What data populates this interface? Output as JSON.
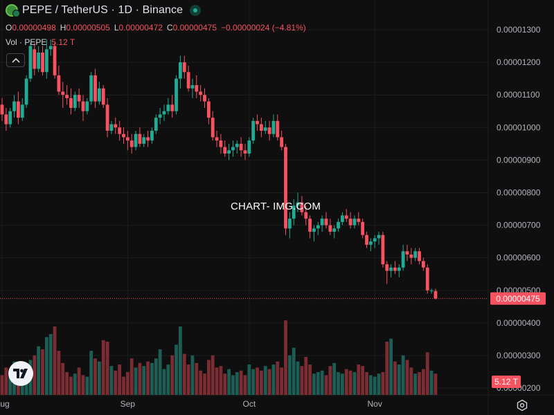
{
  "header": {
    "title": "PEPE / TetherUS · 1D · Binance",
    "symbol_icon": "pepe-coin-icon",
    "status_icon": "market-open-dot-icon"
  },
  "ohlc": {
    "o_label": "O",
    "o_value": "0.00000498",
    "h_label": "H",
    "h_value": "0.00000505",
    "l_label": "L",
    "l_value": "0.00000472",
    "c_label": "C",
    "c_value": "0.00000475",
    "change": "−0.00000024 (−4.81%)"
  },
  "volume": {
    "label": "Vol · PEPE",
    "value": "5.12 T"
  },
  "watermark": "CHART- IMG.COM",
  "colors": {
    "background": "#0f0f0f",
    "up": "#22ab94",
    "down": "#f7525f",
    "vol_up": "#1c5e55",
    "vol_down": "#7c2d33",
    "grid": "#1e1e1e",
    "axis_text": "#b2b5be"
  },
  "chart_data": {
    "type": "candlestick",
    "price_axis": {
      "ticks": [
        "0.00001300",
        "0.00001200",
        "0.00001100",
        "0.00001000",
        "0.00000900",
        "0.00000800",
        "0.00000700",
        "0.00000600",
        "0.00000500",
        "0.00000400",
        "0.00000300",
        "0.00000200"
      ],
      "tick_values": [
        1.3e-05,
        1.2e-05,
        1.1e-05,
        1e-05,
        9e-06,
        8e-06,
        7e-06,
        6e-06,
        5e-06,
        4e-06,
        3e-06,
        2e-06
      ]
    },
    "last_price_label": "0.00000475",
    "volume_label": "5.12 T",
    "x_ticks": [
      {
        "label": "Aug",
        "index": 0
      },
      {
        "label": "Sep",
        "index": 31
      },
      {
        "label": "Oct",
        "index": 61
      },
      {
        "label": "Nov",
        "index": 92
      }
    ],
    "candles": [
      [
        10.7,
        10.9,
        10.2,
        10.4,
        1.3
      ],
      [
        10.4,
        10.6,
        9.9,
        10.1,
        1.8
      ],
      [
        10.1,
        10.6,
        10.0,
        10.5,
        1.6
      ],
      [
        10.5,
        11.0,
        10.3,
        10.8,
        2.2
      ],
      [
        10.8,
        11.1,
        10.1,
        10.3,
        1.9
      ],
      [
        10.3,
        10.9,
        10.2,
        10.7,
        2.1
      ],
      [
        10.7,
        11.6,
        10.6,
        11.5,
        2.0
      ],
      [
        11.5,
        12.6,
        11.4,
        12.5,
        2.3
      ],
      [
        12.4,
        12.6,
        11.6,
        11.8,
        2.6
      ],
      [
        11.8,
        12.5,
        11.7,
        12.3,
        3.2
      ],
      [
        12.3,
        12.5,
        11.6,
        11.7,
        3.0
      ],
      [
        11.7,
        12.7,
        11.5,
        12.4,
        3.8
      ],
      [
        12.4,
        12.7,
        12.2,
        12.5,
        4.0
      ],
      [
        12.5,
        12.6,
        11.5,
        11.6,
        4.5
      ],
      [
        11.6,
        11.9,
        11.0,
        11.1,
        2.9
      ],
      [
        11.1,
        11.4,
        10.6,
        11.0,
        2.1
      ],
      [
        11.0,
        11.3,
        10.7,
        10.9,
        1.5
      ],
      [
        10.9,
        11.2,
        10.4,
        10.6,
        1.2
      ],
      [
        10.6,
        11.1,
        10.5,
        11.0,
        1.4
      ],
      [
        11.0,
        11.2,
        10.6,
        10.8,
        1.8
      ],
      [
        10.8,
        11.0,
        10.2,
        10.5,
        1.3
      ],
      [
        10.5,
        10.9,
        10.4,
        10.8,
        1.2
      ],
      [
        10.8,
        11.7,
        10.7,
        11.6,
        2.9
      ],
      [
        11.6,
        11.8,
        10.6,
        10.8,
        2.4
      ],
      [
        10.8,
        11.4,
        10.7,
        11.2,
        2.2
      ],
      [
        11.2,
        11.3,
        10.6,
        10.7,
        3.6
      ],
      [
        10.7,
        10.9,
        9.7,
        9.9,
        3.5
      ],
      [
        9.9,
        10.2,
        9.8,
        10.1,
        1.9
      ],
      [
        10.1,
        10.3,
        9.8,
        10.0,
        1.6
      ],
      [
        10.0,
        10.2,
        9.6,
        9.8,
        2.0
      ],
      [
        9.8,
        10.0,
        9.5,
        9.7,
        1.2
      ],
      [
        9.7,
        9.9,
        9.3,
        9.6,
        1.5
      ],
      [
        9.6,
        9.8,
        9.2,
        9.4,
        2.4
      ],
      [
        9.4,
        9.9,
        9.3,
        9.8,
        1.8
      ],
      [
        9.8,
        10.0,
        9.4,
        9.5,
        2.1
      ],
      [
        9.5,
        9.8,
        9.4,
        9.7,
        1.9
      ],
      [
        9.7,
        9.9,
        9.4,
        9.6,
        2.2
      ],
      [
        9.6,
        10.0,
        9.5,
        9.9,
        2.1
      ],
      [
        9.9,
        10.4,
        9.8,
        10.3,
        2.4
      ],
      [
        10.3,
        10.6,
        10.1,
        10.4,
        3.0
      ],
      [
        10.4,
        10.7,
        10.2,
        10.5,
        1.7
      ],
      [
        10.5,
        10.9,
        10.4,
        10.7,
        2.0
      ],
      [
        10.7,
        11.0,
        10.3,
        10.5,
        2.6
      ],
      [
        10.5,
        11.6,
        10.4,
        11.5,
        3.3
      ],
      [
        11.5,
        12.2,
        11.2,
        12.0,
        4.5
      ],
      [
        12.0,
        12.2,
        11.5,
        11.7,
        2.7
      ],
      [
        11.7,
        11.9,
        11.1,
        11.2,
        2.0
      ],
      [
        11.2,
        11.5,
        10.9,
        11.3,
        2.6
      ],
      [
        11.3,
        11.6,
        10.9,
        11.1,
        2.1
      ],
      [
        11.1,
        11.3,
        10.8,
        11.0,
        1.6
      ],
      [
        11.0,
        11.2,
        10.6,
        10.8,
        1.4
      ],
      [
        10.8,
        10.9,
        10.1,
        10.3,
        2.3
      ],
      [
        10.3,
        10.5,
        9.6,
        9.7,
        2.6
      ],
      [
        9.7,
        9.9,
        9.4,
        9.6,
        1.8
      ],
      [
        9.6,
        9.8,
        9.2,
        9.4,
        1.9
      ],
      [
        9.4,
        9.6,
        9.1,
        9.2,
        1.4
      ],
      [
        9.2,
        9.5,
        9.0,
        9.3,
        1.7
      ],
      [
        9.3,
        9.6,
        9.1,
        9.4,
        1.3
      ],
      [
        9.4,
        9.6,
        9.2,
        9.5,
        1.5
      ],
      [
        9.5,
        9.7,
        9.1,
        9.3,
        1.6
      ],
      [
        9.3,
        9.5,
        9.0,
        9.2,
        1.3
      ],
      [
        9.2,
        9.7,
        9.1,
        9.6,
        2.0
      ],
      [
        9.6,
        10.3,
        9.5,
        10.2,
        1.7
      ],
      [
        10.2,
        10.4,
        9.9,
        10.1,
        1.8
      ],
      [
        10.1,
        10.3,
        9.7,
        9.9,
        1.6
      ],
      [
        9.9,
        10.2,
        9.8,
        10.0,
        1.9
      ],
      [
        10.0,
        10.2,
        9.6,
        9.8,
        1.7
      ],
      [
        9.8,
        10.4,
        9.7,
        10.2,
        2.0
      ],
      [
        10.2,
        10.4,
        9.6,
        9.7,
        2.2
      ],
      [
        9.7,
        9.9,
        9.3,
        9.4,
        1.8
      ],
      [
        9.4,
        9.5,
        6.7,
        6.9,
        4.9
      ],
      [
        6.9,
        7.4,
        6.6,
        7.2,
        2.6
      ],
      [
        7.2,
        7.8,
        7.0,
        7.6,
        3.1
      ],
      [
        7.6,
        8.0,
        7.4,
        7.7,
        2.2
      ],
      [
        7.7,
        7.9,
        7.3,
        7.4,
        1.9
      ],
      [
        7.4,
        7.6,
        7.0,
        7.2,
        2.5
      ],
      [
        7.2,
        7.3,
        6.6,
        6.8,
        2.0
      ],
      [
        6.8,
        7.0,
        6.5,
        6.9,
        1.4
      ],
      [
        6.9,
        7.1,
        6.7,
        7.0,
        1.5
      ],
      [
        7.0,
        7.3,
        6.8,
        7.2,
        1.6
      ],
      [
        7.2,
        7.4,
        6.9,
        7.0,
        1.3
      ],
      [
        7.0,
        7.2,
        6.7,
        6.8,
        1.9
      ],
      [
        6.8,
        7.0,
        6.6,
        6.9,
        2.1
      ],
      [
        6.9,
        7.2,
        6.8,
        7.1,
        1.5
      ],
      [
        7.1,
        7.4,
        7.0,
        7.3,
        1.4
      ],
      [
        7.3,
        7.5,
        7.1,
        7.2,
        1.7
      ],
      [
        7.2,
        7.4,
        6.9,
        7.0,
        1.6
      ],
      [
        7.0,
        7.3,
        6.9,
        7.2,
        1.5
      ],
      [
        7.2,
        7.4,
        7.0,
        7.1,
        2.0
      ],
      [
        7.1,
        7.2,
        6.6,
        6.7,
        1.9
      ],
      [
        6.7,
        6.8,
        6.3,
        6.4,
        1.5
      ],
      [
        6.4,
        6.6,
        6.2,
        6.5,
        1.3
      ],
      [
        6.5,
        6.7,
        6.3,
        6.6,
        1.2
      ],
      [
        6.6,
        6.8,
        6.4,
        6.7,
        1.4
      ],
      [
        6.7,
        6.8,
        5.7,
        5.8,
        1.5
      ],
      [
        5.8,
        5.9,
        5.2,
        5.6,
        3.5
      ],
      [
        5.6,
        5.8,
        5.4,
        5.7,
        3.7
      ],
      [
        5.7,
        5.9,
        5.5,
        5.6,
        2.2
      ],
      [
        5.6,
        5.8,
        5.4,
        5.7,
        2.0
      ],
      [
        5.7,
        6.4,
        5.6,
        6.2,
        2.6
      ],
      [
        6.2,
        6.4,
        5.9,
        6.1,
        2.3
      ],
      [
        6.1,
        6.3,
        5.8,
        6.0,
        1.8
      ],
      [
        6.0,
        6.3,
        5.9,
        6.2,
        1.4
      ],
      [
        6.2,
        6.3,
        5.8,
        5.9,
        1.5
      ],
      [
        5.9,
        6.0,
        5.6,
        5.7,
        1.7
      ],
      [
        5.7,
        5.8,
        4.9,
        5.0,
        2.8
      ],
      [
        4.98,
        5.05,
        4.9,
        5.0,
        1.6
      ],
      [
        4.98,
        5.05,
        4.72,
        4.75,
        1.4
      ]
    ]
  }
}
